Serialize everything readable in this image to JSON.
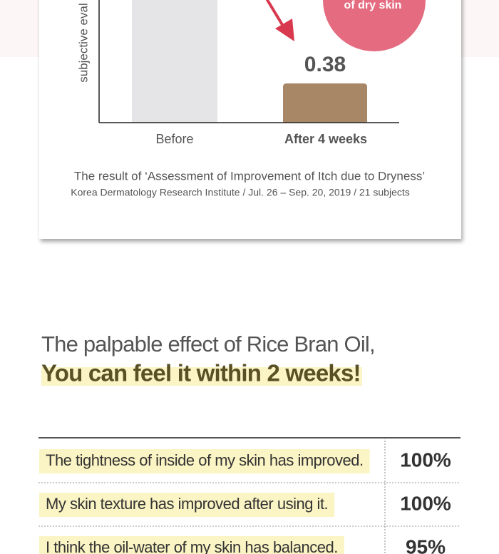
{
  "result_chart": {
    "badge": "of dry skin",
    "y_axis_label": "subjective eval",
    "value_label": "0.38",
    "categories": [
      "Before",
      "After 4 weeks"
    ],
    "caption": "The result of ‘Assessment of Improvement of Itch due to Dryness’",
    "source": "Korea Dermatology Research Institute / Jul. 26 – Sep. 20, 2019 / 21 subjects"
  },
  "heading": {
    "line1": "The palpable effect of Rice Bran Oil,",
    "line2": "You can feel it within 2 weeks!"
  },
  "table": {
    "rows": [
      [
        "The tightness of inside of my skin has improved.",
        "100%"
      ],
      [
        "My skin texture has improved after using it.",
        "100%"
      ],
      [
        "I think the oil-water of my skin has balanced.",
        "95%"
      ]
    ]
  }
}
